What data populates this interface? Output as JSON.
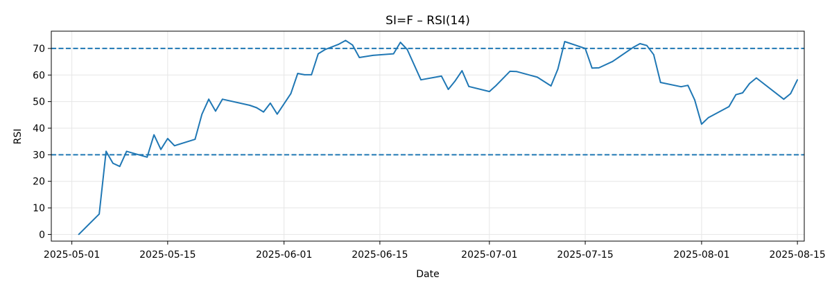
{
  "chart_data": {
    "type": "line",
    "title": "SI=F – RSI(14)",
    "xlabel": "Date",
    "ylabel": "RSI",
    "grid": true,
    "x_axis": {
      "type": "date",
      "range": [
        "2025-04-28",
        "2025-08-16"
      ],
      "ticks": [
        "2025-05-01",
        "2025-05-15",
        "2025-06-01",
        "2025-06-15",
        "2025-07-01",
        "2025-07-15",
        "2025-08-01",
        "2025-08-15"
      ]
    },
    "y_axis": {
      "range": [
        -2.5,
        76.5
      ],
      "ticks": [
        0,
        10,
        20,
        30,
        40,
        50,
        60,
        70
      ]
    },
    "reference_lines": [
      {
        "y": 70,
        "style": "dashed",
        "color": "#1f77b4"
      },
      {
        "y": 30,
        "style": "dashed",
        "color": "#1f77b4"
      }
    ],
    "series": [
      {
        "color": "#1f77b4",
        "points": [
          [
            "2025-05-02",
            0.0
          ],
          [
            "2025-05-05",
            7.7
          ],
          [
            "2025-05-06",
            31.3
          ],
          [
            "2025-05-07",
            26.8
          ],
          [
            "2025-05-08",
            25.6
          ],
          [
            "2025-05-09",
            31.3
          ],
          [
            "2025-05-12",
            29.1
          ],
          [
            "2025-05-13",
            37.5
          ],
          [
            "2025-05-14",
            32.0
          ],
          [
            "2025-05-15",
            36.1
          ],
          [
            "2025-05-16",
            33.4
          ],
          [
            "2025-05-19",
            35.8
          ],
          [
            "2025-05-20",
            45.2
          ],
          [
            "2025-05-21",
            50.9
          ],
          [
            "2025-05-22",
            46.4
          ],
          [
            "2025-05-23",
            50.9
          ],
          [
            "2025-05-27",
            48.6
          ],
          [
            "2025-05-28",
            47.7
          ],
          [
            "2025-05-29",
            46.1
          ],
          [
            "2025-05-30",
            49.4
          ],
          [
            "2025-05-31",
            45.3
          ],
          [
            "2025-06-02",
            53.0
          ],
          [
            "2025-06-03",
            60.6
          ],
          [
            "2025-06-04",
            60.1
          ],
          [
            "2025-06-05",
            60.1
          ],
          [
            "2025-06-06",
            68.0
          ],
          [
            "2025-06-07",
            69.6
          ],
          [
            "2025-06-09",
            71.6
          ],
          [
            "2025-06-10",
            73.0
          ],
          [
            "2025-06-11",
            71.3
          ],
          [
            "2025-06-12",
            66.6
          ],
          [
            "2025-06-14",
            67.4
          ],
          [
            "2025-06-17",
            68.0
          ],
          [
            "2025-06-18",
            72.3
          ],
          [
            "2025-06-19",
            69.6
          ],
          [
            "2025-06-21",
            58.2
          ],
          [
            "2025-06-24",
            59.6
          ],
          [
            "2025-06-25",
            54.6
          ],
          [
            "2025-06-26",
            57.8
          ],
          [
            "2025-06-27",
            61.6
          ],
          [
            "2025-06-28",
            55.7
          ],
          [
            "2025-07-01",
            53.8
          ],
          [
            "2025-07-02",
            56.1
          ],
          [
            "2025-07-04",
            61.4
          ],
          [
            "2025-07-05",
            61.3
          ],
          [
            "2025-07-08",
            59.2
          ],
          [
            "2025-07-10",
            55.9
          ],
          [
            "2025-07-11",
            62.2
          ],
          [
            "2025-07-12",
            72.6
          ],
          [
            "2025-07-15",
            70.0
          ],
          [
            "2025-07-16",
            62.6
          ],
          [
            "2025-07-17",
            62.7
          ],
          [
            "2025-07-19",
            65.1
          ],
          [
            "2025-07-22",
            70.4
          ],
          [
            "2025-07-23",
            71.8
          ],
          [
            "2025-07-24",
            71.1
          ],
          [
            "2025-07-25",
            67.7
          ],
          [
            "2025-07-26",
            57.2
          ],
          [
            "2025-07-29",
            55.6
          ],
          [
            "2025-07-30",
            56.1
          ],
          [
            "2025-07-31",
            50.6
          ],
          [
            "2025-08-01",
            41.5
          ],
          [
            "2025-08-02",
            44.0
          ],
          [
            "2025-08-05",
            48.1
          ],
          [
            "2025-08-06",
            52.6
          ],
          [
            "2025-08-07",
            53.3
          ],
          [
            "2025-08-08",
            56.8
          ],
          [
            "2025-08-09",
            58.9
          ],
          [
            "2025-08-13",
            50.9
          ],
          [
            "2025-08-14",
            53.0
          ],
          [
            "2025-08-15",
            58.2
          ]
        ]
      }
    ]
  }
}
